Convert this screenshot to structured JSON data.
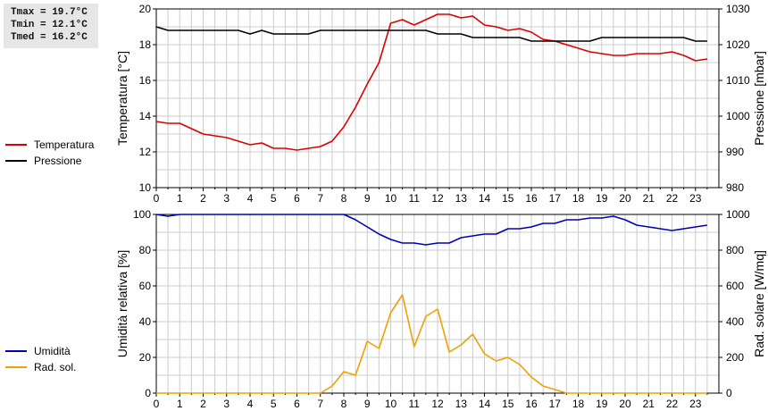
{
  "stats": {
    "tmax": "Tmax = 19.7°C",
    "tmin": "Tmin = 12.1°C",
    "tmed": "Tmed = 16.2°C"
  },
  "colors": {
    "temperature": "#dd0000",
    "pressure": "#000000",
    "humidity": "#0000bb",
    "solar": "#f0a000",
    "grid": "#cccccc"
  },
  "chart_data": [
    {
      "type": "line",
      "ylabel": "Temperatura [°C]",
      "y2label": "Pressione [mbar]",
      "xlim": [
        0,
        24
      ],
      "ylim": [
        10,
        20
      ],
      "y2lim": [
        980,
        1030
      ],
      "xticks": [
        "0",
        "1",
        "2",
        "3",
        "4",
        "5",
        "6",
        "7",
        "8",
        "9",
        "10",
        "11",
        "12",
        "13",
        "14",
        "15",
        "16",
        "17",
        "18",
        "19",
        "20",
        "21",
        "22",
        "23"
      ],
      "yticks": [
        "10",
        "12",
        "14",
        "16",
        "18",
        "20"
      ],
      "y2ticks": [
        "980",
        "990",
        "1000",
        "1010",
        "1020",
        "1030"
      ],
      "grid": true,
      "legend": {
        "position": "left",
        "entries": [
          "Temperatura",
          "Pressione"
        ]
      },
      "series": [
        {
          "name": "Temperatura",
          "axis": "left",
          "x": [
            0,
            0.5,
            1,
            1.5,
            2,
            2.5,
            3,
            3.5,
            4,
            4.5,
            5,
            5.5,
            6,
            6.5,
            7,
            7.5,
            8,
            8.5,
            9,
            9.5,
            10,
            10.5,
            11,
            11.5,
            12,
            12.5,
            13,
            13.5,
            14,
            14.5,
            15,
            15.5,
            16,
            16.5,
            17,
            17.5,
            18,
            18.5,
            19,
            19.5,
            20,
            20.5,
            21,
            21.5,
            22,
            22.5,
            23,
            23.5
          ],
          "y": [
            13.7,
            13.6,
            13.6,
            13.3,
            13.0,
            12.9,
            12.8,
            12.6,
            12.4,
            12.5,
            12.2,
            12.2,
            12.1,
            12.2,
            12.3,
            12.6,
            13.4,
            14.5,
            15.8,
            17.0,
            19.2,
            19.4,
            19.1,
            19.4,
            19.7,
            19.7,
            19.5,
            19.6,
            19.1,
            19.0,
            18.8,
            18.9,
            18.7,
            18.3,
            18.2,
            18.0,
            17.8,
            17.6,
            17.5,
            17.4,
            17.4,
            17.5,
            17.5,
            17.5,
            17.6,
            17.4,
            17.1,
            17.2
          ]
        },
        {
          "name": "Pressione",
          "axis": "right",
          "x": [
            0,
            0.5,
            1,
            1.5,
            2,
            2.5,
            3,
            3.5,
            4,
            4.5,
            5,
            5.5,
            6,
            6.5,
            7,
            7.5,
            8,
            8.5,
            9,
            9.5,
            10,
            10.5,
            11,
            11.5,
            12,
            12.5,
            13,
            13.5,
            14,
            14.5,
            15,
            15.5,
            16,
            16.5,
            17,
            17.5,
            18,
            18.5,
            19,
            19.5,
            20,
            20.5,
            21,
            21.5,
            22,
            22.5,
            23,
            23.5
          ],
          "y": [
            1025,
            1024,
            1024,
            1024,
            1024,
            1024,
            1024,
            1024,
            1023,
            1024,
            1023,
            1023,
            1023,
            1023,
            1024,
            1024,
            1024,
            1024,
            1024,
            1024,
            1024,
            1024,
            1024,
            1024,
            1023,
            1023,
            1023,
            1022,
            1022,
            1022,
            1022,
            1022,
            1021,
            1021,
            1021,
            1021,
            1021,
            1021,
            1022,
            1022,
            1022,
            1022,
            1022,
            1022,
            1022,
            1022,
            1021,
            1021
          ]
        }
      ]
    },
    {
      "type": "line",
      "ylabel": "Umidità relativa [%]",
      "y2label": "Rad. solare [W/mq]",
      "xlim": [
        0,
        24
      ],
      "ylim": [
        0,
        100
      ],
      "y2lim": [
        0,
        1000
      ],
      "xticks": [
        "0",
        "1",
        "2",
        "3",
        "4",
        "5",
        "6",
        "7",
        "8",
        "9",
        "10",
        "11",
        "12",
        "13",
        "14",
        "15",
        "16",
        "17",
        "18",
        "19",
        "20",
        "21",
        "22",
        "23"
      ],
      "yticks": [
        "0",
        "20",
        "40",
        "60",
        "80",
        "100"
      ],
      "y2ticks": [
        "0",
        "200",
        "400",
        "600",
        "800",
        "1000"
      ],
      "grid": true,
      "legend": {
        "position": "left",
        "entries": [
          "Umidità",
          "Rad. sol."
        ]
      },
      "series": [
        {
          "name": "Umidità",
          "axis": "left",
          "x": [
            0,
            0.5,
            1,
            1.5,
            2,
            2.5,
            3,
            3.5,
            4,
            4.5,
            5,
            5.5,
            6,
            6.5,
            7,
            7.5,
            8,
            8.5,
            9,
            9.5,
            10,
            10.5,
            11,
            11.5,
            12,
            12.5,
            13,
            13.5,
            14,
            14.5,
            15,
            15.5,
            16,
            16.5,
            17,
            17.5,
            18,
            18.5,
            19,
            19.5,
            20,
            20.5,
            21,
            21.5,
            22,
            22.5,
            23,
            23.5
          ],
          "y": [
            100,
            99,
            100,
            100,
            100,
            100,
            100,
            100,
            100,
            100,
            100,
            100,
            100,
            100,
            100,
            100,
            100,
            97,
            93,
            89,
            86,
            84,
            84,
            83,
            84,
            84,
            87,
            88,
            89,
            89,
            92,
            92,
            93,
            95,
            95,
            97,
            97,
            98,
            98,
            99,
            97,
            94,
            93,
            92,
            91,
            92,
            93,
            94
          ]
        },
        {
          "name": "Rad. sol.",
          "axis": "right",
          "x": [
            0,
            0.5,
            1,
            1.5,
            2,
            2.5,
            3,
            3.5,
            4,
            4.5,
            5,
            5.5,
            6,
            6.5,
            7,
            7.5,
            8,
            8.5,
            9,
            9.5,
            10,
            10.5,
            11,
            11.5,
            12,
            12.5,
            13,
            13.5,
            14,
            14.5,
            15,
            15.5,
            16,
            16.5,
            17,
            17.5,
            18,
            18.5,
            19,
            19.5,
            20,
            20.5,
            21,
            21.5,
            22,
            22.5,
            23,
            23.5
          ],
          "y": [
            0,
            0,
            0,
            0,
            0,
            0,
            0,
            0,
            0,
            0,
            0,
            0,
            0,
            0,
            0,
            40,
            120,
            100,
            290,
            250,
            450,
            550,
            260,
            430,
            470,
            230,
            270,
            330,
            220,
            180,
            200,
            160,
            90,
            40,
            20,
            0,
            0,
            0,
            0,
            0,
            0,
            0,
            0,
            0,
            0,
            0,
            0,
            0
          ]
        }
      ]
    }
  ]
}
